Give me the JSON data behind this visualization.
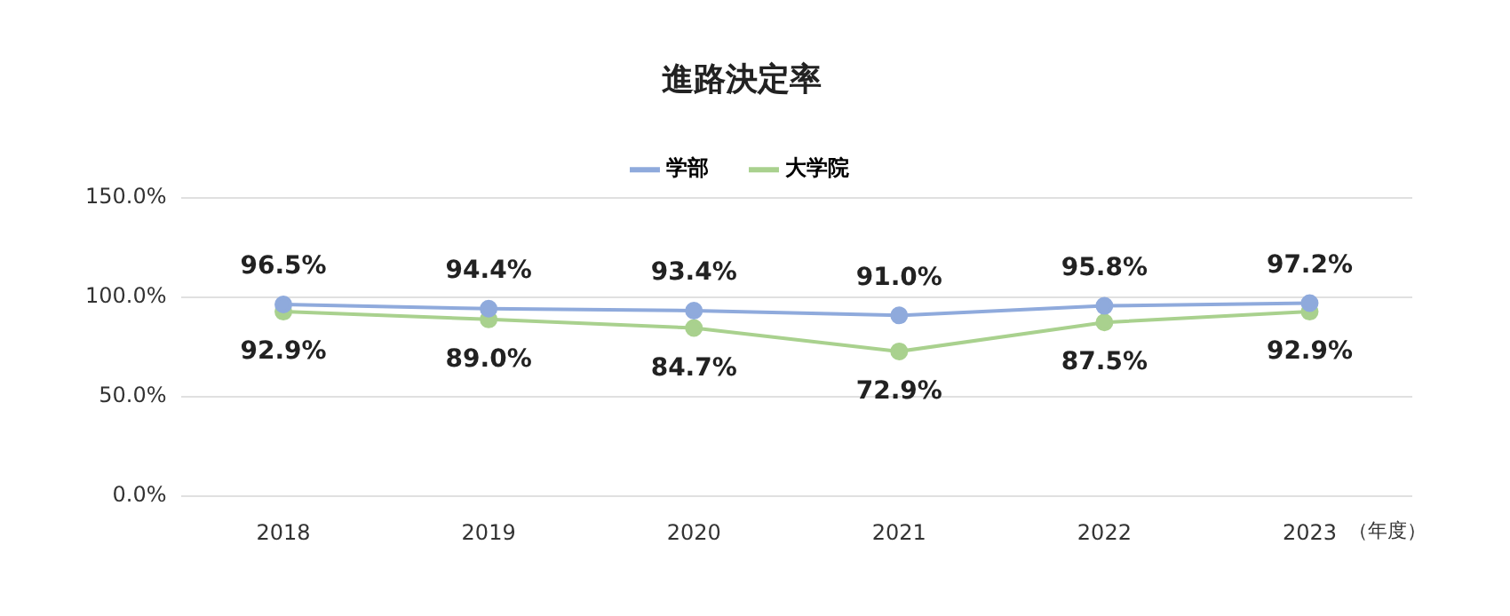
{
  "chart_data": {
    "type": "line",
    "title": "進路決定率",
    "xlabel": "（年度）",
    "categories": [
      "2018",
      "2019",
      "2020",
      "2021",
      "2022",
      "2023"
    ],
    "series": [
      {
        "name": "学部",
        "color": "#8faadc",
        "values": [
          96.5,
          94.4,
          93.4,
          91.0,
          95.8,
          97.2
        ],
        "value_labels": [
          "96.5%",
          "94.4%",
          "93.4%",
          "91.0%",
          "95.8%",
          "97.2%"
        ]
      },
      {
        "name": "大学院",
        "color": "#a9d18e",
        "values": [
          92.9,
          89.0,
          84.7,
          72.9,
          87.5,
          92.9
        ],
        "value_labels": [
          "92.9%",
          "89.0%",
          "84.7%",
          "72.9%",
          "87.5%",
          "92.9%"
        ]
      }
    ],
    "ylim": [
      0,
      150
    ],
    "yticks": [
      {
        "value": 0,
        "label": "0.0%"
      },
      {
        "value": 50,
        "label": "50.0%"
      },
      {
        "value": 100,
        "label": "100.0%"
      },
      {
        "value": 150,
        "label": "150.0%"
      }
    ],
    "grid": "y",
    "legend": "top",
    "marker": "circle",
    "line_style": "solid"
  }
}
